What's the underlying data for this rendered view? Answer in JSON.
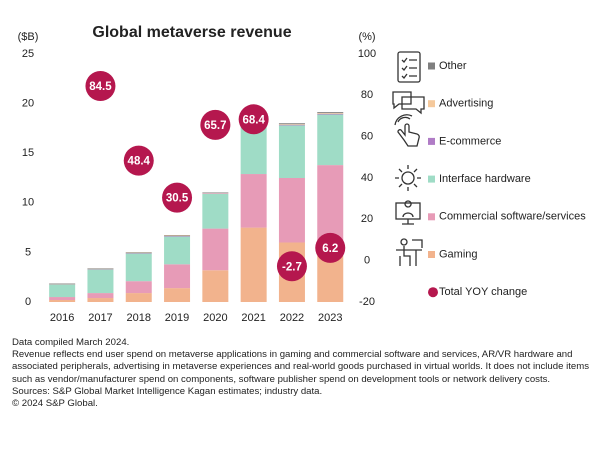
{
  "chart_data": {
    "type": "stacked-bar",
    "title": "Global metaverse revenue",
    "y_label": "($B)",
    "y2_label": "(%)",
    "categories": [
      "2016",
      "2017",
      "2018",
      "2019",
      "2020",
      "2021",
      "2022",
      "2023"
    ],
    "series": [
      {
        "name": "Gaming",
        "color": "#f2b38d",
        "values": [
          0.2,
          0.4,
          0.9,
          1.4,
          3.2,
          7.5,
          6.0,
          5.8
        ]
      },
      {
        "name": "Commercial software/services",
        "color": "#e79bb7",
        "values": [
          0.3,
          0.5,
          1.2,
          2.4,
          4.2,
          5.4,
          6.5,
          8.0
        ]
      },
      {
        "name": "Interface hardware",
        "color": "#9fdcc6",
        "values": [
          1.3,
          2.4,
          2.8,
          2.8,
          3.5,
          5.4,
          5.3,
          5.1
        ]
      },
      {
        "name": "E-commerce",
        "color": "#b07cc6",
        "values": [
          0.02,
          0.03,
          0.04,
          0.05,
          0.05,
          0.06,
          0.06,
          0.07
        ]
      },
      {
        "name": "Advertising",
        "color": "#f5c99c",
        "values": [
          0.02,
          0.03,
          0.04,
          0.05,
          0.05,
          0.06,
          0.06,
          0.07
        ]
      },
      {
        "name": "Other",
        "color": "#7f7f7f",
        "values": [
          0.02,
          0.03,
          0.04,
          0.05,
          0.05,
          0.1,
          0.1,
          0.1
        ]
      },
      {
        "name": "Total YOY change",
        "color": "#b5174e",
        "axis": "y2",
        "type": "circle",
        "values": [
          null,
          84.5,
          48.4,
          30.5,
          65.7,
          68.4,
          -2.7,
          6.2
        ]
      }
    ],
    "ylim": [
      0,
      25
    ],
    "yticks": [
      0,
      5,
      10,
      15,
      20,
      25
    ],
    "y2lim": [
      -20,
      100
    ],
    "y2ticks": [
      -20,
      0,
      20,
      40,
      60,
      80,
      100
    ],
    "grid": false
  },
  "notes": [
    "Data compiled March 2024.",
    "Revenue reflects end user spend on metaverse applications in gaming and commercial software and services, AR/VR hardware and associated peripherals, advertising in metaverse experiences and real-world goods purchased in virtual worlds. It does not include items such as vendor/manufacturer spend on components, software publisher spend on development tools or network delivery costs.",
    "Sources: S&P Global Market Intelligence Kagan estimates; industry data.",
    "© 2024 S&P Global."
  ]
}
